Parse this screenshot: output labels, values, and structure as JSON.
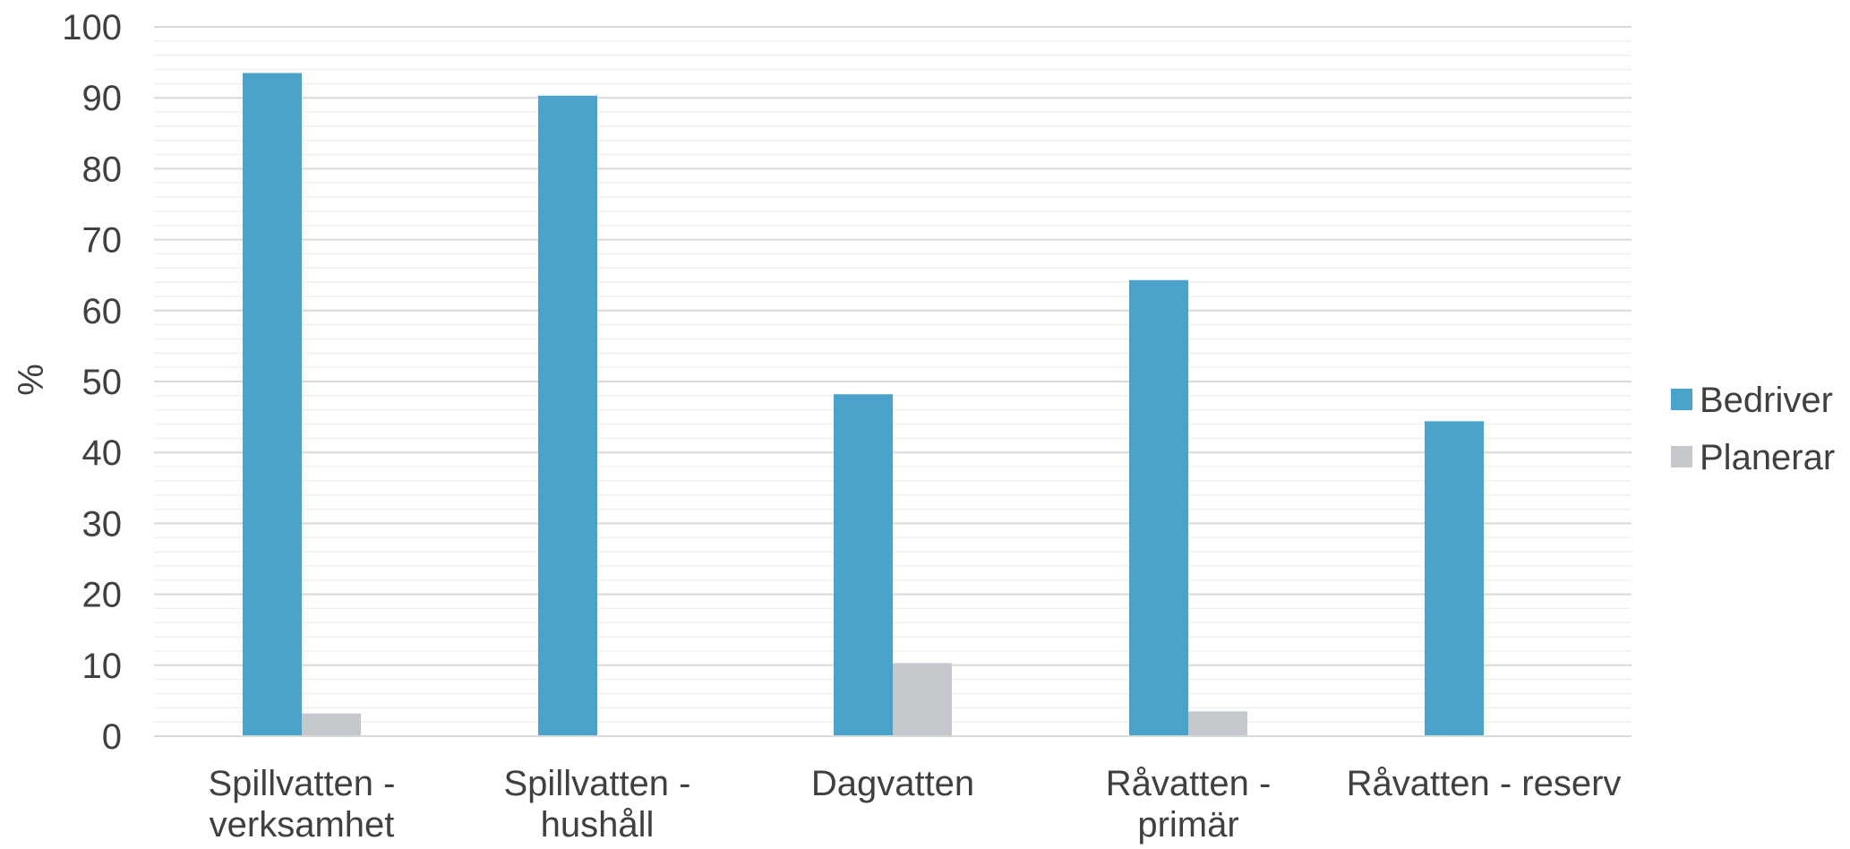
{
  "chart_data": {
    "type": "bar",
    "title": "",
    "xlabel": "",
    "ylabel": "%",
    "ylim": [
      0,
      100
    ],
    "yticks": [
      0,
      10,
      20,
      30,
      40,
      50,
      60,
      70,
      80,
      90,
      100
    ],
    "grid": true,
    "legend_position": "right",
    "categories": [
      [
        "Spillvatten -",
        "verksamhet"
      ],
      [
        "Spillvatten -",
        "hushåll"
      ],
      [
        "Dagvatten"
      ],
      [
        "Råvatten -",
        "primär"
      ],
      [
        "Råvatten - reserv"
      ]
    ],
    "series": [
      {
        "name": "Bedriver",
        "color": "#4BA3CB",
        "values": [
          93.5,
          90.3,
          48.2,
          64.3,
          44.4
        ]
      },
      {
        "name": "Planerar",
        "color": "#C4C8CC",
        "values": [
          3.2,
          0,
          10.3,
          3.5,
          0
        ]
      }
    ]
  }
}
